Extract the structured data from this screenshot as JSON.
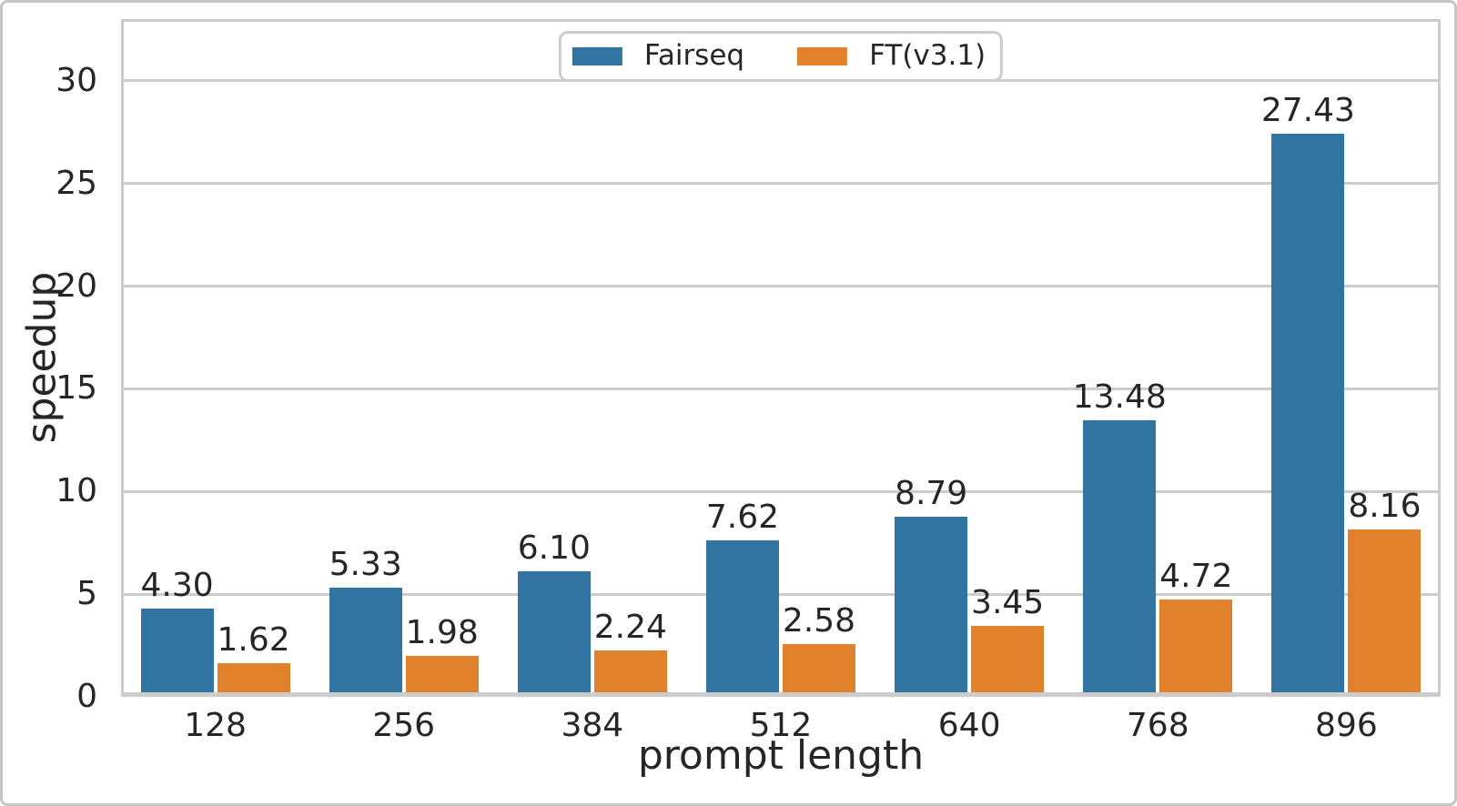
{
  "chart_data": {
    "type": "bar",
    "categories": [
      "128",
      "256",
      "384",
      "512",
      "640",
      "768",
      "896"
    ],
    "series": [
      {
        "name": "Fairseq",
        "color": "#3274a1",
        "values": [
          4.3,
          5.33,
          6.1,
          7.62,
          8.79,
          13.48,
          27.43
        ]
      },
      {
        "name": "FT(v3.1)",
        "color": "#e1812c",
        "values": [
          1.62,
          1.98,
          2.24,
          2.58,
          3.45,
          4.72,
          8.16
        ]
      }
    ],
    "title": "",
    "xlabel": "prompt length",
    "ylabel": "speedup",
    "yticks": [
      0,
      5,
      10,
      15,
      20,
      25,
      30
    ],
    "ylim": [
      0,
      33
    ],
    "grid": true,
    "value_label_decimals": 2,
    "legend_position": "upper center"
  },
  "colors": {
    "grid": "#cccccc",
    "spine": "#cccccc",
    "figure_border": "#c6c6c6",
    "text": "#262626",
    "background": "#ffffff"
  }
}
